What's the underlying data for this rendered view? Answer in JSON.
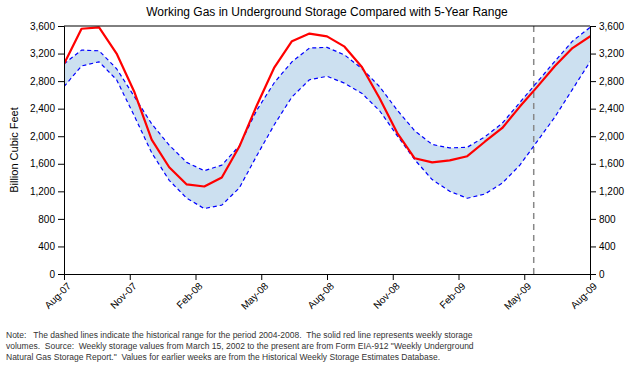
{
  "chart_data": {
    "type": "line",
    "title": "Working Gas in Underground Storage Compared with 5-Year Range",
    "ylabel": "Billion Cubic Feet",
    "note": "Note:   The dashed lines indicate the historical range for the period 2004-2008.  The solid red line represents weekly storage\nvolumes.  Source:  Weekly storage values from March 15, 2002 to the present are from Form EIA-912 \"Weekly Underground\nNatural Gas Storage Report.\"  Values for earlier weeks are from the Historical Weekly Storage Estimates Database.",
    "x": [
      0,
      1,
      2,
      3,
      4,
      5,
      6,
      7,
      8,
      9,
      10,
      11,
      12,
      13,
      14,
      15,
      16,
      17,
      18,
      19,
      20,
      21,
      22,
      23,
      24,
      25,
      26,
      27,
      28,
      29,
      30
    ],
    "xlim": [
      0,
      30
    ],
    "xticks": [
      {
        "value": 0,
        "label": "Aug-07"
      },
      {
        "value": 3.75,
        "label": "Nov-07"
      },
      {
        "value": 7.5,
        "label": "Feb-08"
      },
      {
        "value": 11.25,
        "label": "May-08"
      },
      {
        "value": 15,
        "label": "Aug-08"
      },
      {
        "value": 18.75,
        "label": "Nov-08"
      },
      {
        "value": 22.5,
        "label": "Feb-09"
      },
      {
        "value": 26.25,
        "label": "May-09"
      },
      {
        "value": 30,
        "label": "Aug-09"
      }
    ],
    "ylim": [
      0,
      3600
    ],
    "yticks": [
      0,
      400,
      800,
      {
        "value": 1200,
        "label": "1,200"
      },
      {
        "value": 1600,
        "label": "1,600"
      },
      {
        "value": 2000,
        "label": "2,000"
      },
      {
        "value": 2400,
        "label": "2,400"
      },
      {
        "value": 2800,
        "label": "2,800"
      },
      {
        "value": 3200,
        "label": "3,200"
      },
      {
        "value": 3600,
        "label": "3,600"
      }
    ],
    "y2lim": [
      0,
      3600
    ],
    "y2ticks": [
      0,
      400,
      800,
      {
        "value": 1200,
        "label": "1,200"
      },
      {
        "value": 1600,
        "label": "1,600"
      },
      {
        "value": 2000,
        "label": "2,000"
      },
      {
        "value": 2400,
        "label": "2,400"
      },
      {
        "value": 2800,
        "label": "2,800"
      },
      {
        "value": 3200,
        "label": "3,200"
      },
      {
        "value": 3600,
        "label": "3,600"
      }
    ],
    "color": "#cce0f0",
    "vline_x": 26.79,
    "series": [
      {
        "color": "blue",
        "line_style": "dashed",
        "values": [
          3050,
          3250,
          3240,
          2980,
          2580,
          2180,
          1870,
          1620,
          1500,
          1580,
          1860,
          2380,
          2780,
          3080,
          3280,
          3290,
          3180,
          2980,
          2720,
          2380,
          2080,
          1880,
          1830,
          1840,
          1990,
          2190,
          2490,
          2790,
          3090,
          3380,
          3580
        ]
      },
      {
        "color": "blue",
        "line_style": "dashed",
        "values": [
          2720,
          3020,
          3080,
          2820,
          2300,
          1760,
          1360,
          1100,
          950,
          1000,
          1250,
          1720,
          2170,
          2570,
          2820,
          2870,
          2770,
          2620,
          2370,
          2010,
          1660,
          1370,
          1200,
          1100,
          1160,
          1320,
          1580,
          1930,
          2280,
          2680,
          3080
        ]
      },
      {
        "color": "red",
        "line_style": "solid",
        "values": [
          3050,
          3560,
          3580,
          3200,
          2650,
          1950,
          1550,
          1300,
          1270,
          1400,
          1850,
          2450,
          3000,
          3380,
          3490,
          3450,
          3300,
          3000,
          2550,
          2050,
          1680,
          1620,
          1650,
          1710,
          1920,
          2120,
          2430,
          2720,
          3020,
          3280,
          3450
        ]
      }
    ]
  }
}
